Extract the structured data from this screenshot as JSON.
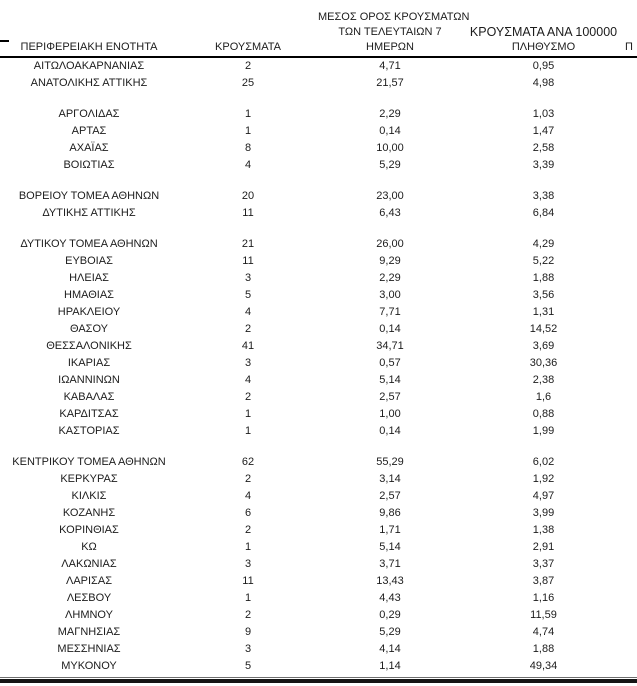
{
  "page": {
    "background": "#ffffff",
    "text_color": "#1c1c1c",
    "rule_color": "#000000"
  },
  "table": {
    "header": {
      "col1": "ΠΕΡΙΦΕΡΕΙΑΚΗ ΕΝΟΤΗΤΑ",
      "col2": "ΚΡΟΥΣΜΑΤΑ",
      "col3_line1": "ΜΕΣΟΣ ΟΡΟΣ ΚΡΟΥΣΜΑΤΩΝ",
      "col3_line2": "ΤΩΝ ΤΕΛΕΥΤΑΙΩΝ 7",
      "col3_line3": "ΗΜΕΡΩΝ",
      "col4_line1": "ΚΡΟΥΣΜΑΤΑ ΑΝΑ 100000",
      "col4_line2": "ΠΛΗΘΥΣΜΟ",
      "next_column_clipped": "Π"
    },
    "column_fields": [
      "region",
      "cases",
      "avg_last_7_days",
      "cases_per_100000"
    ],
    "groups": [
      [
        [
          "ΑΙΤΩΛΟΑΚΑΡΝΑΝΙΑΣ",
          "2",
          "4,71",
          "0,95"
        ],
        [
          "ΑΝΑΤΟΛΙΚΗΣ ΑΤΤΙΚΗΣ",
          "25",
          "21,57",
          "4,98"
        ]
      ],
      [
        [
          "ΑΡΓΟΛΙΔΑΣ",
          "1",
          "2,29",
          "1,03"
        ],
        [
          "ΑΡΤΑΣ",
          "1",
          "0,14",
          "1,47"
        ],
        [
          "ΑΧΑΪΑΣ",
          "8",
          "10,00",
          "2,58"
        ],
        [
          "ΒΟΙΩΤΙΑΣ",
          "4",
          "5,29",
          "3,39"
        ]
      ],
      [
        [
          "ΒΟΡΕΙΟΥ ΤΟΜΕΑ ΑΘΗΝΩΝ",
          "20",
          "23,00",
          "3,38"
        ],
        [
          "ΔΥΤΙΚΗΣ ΑΤΤΙΚΗΣ",
          "11",
          "6,43",
          "6,84"
        ]
      ],
      [
        [
          "ΔΥΤΙΚΟΥ ΤΟΜΕΑ ΑΘΗΝΩΝ",
          "21",
          "26,00",
          "4,29"
        ],
        [
          "ΕΥΒΟΙΑΣ",
          "11",
          "9,29",
          "5,22"
        ],
        [
          "ΗΛΕΙΑΣ",
          "3",
          "2,29",
          "1,88"
        ],
        [
          "ΗΜΑΘΙΑΣ",
          "5",
          "3,00",
          "3,56"
        ],
        [
          "ΗΡΑΚΛΕΙΟΥ",
          "4",
          "7,71",
          "1,31"
        ],
        [
          "ΘΑΣΟΥ",
          "2",
          "0,14",
          "14,52"
        ],
        [
          "ΘΕΣΣΑΛΟΝΙΚΗΣ",
          "41",
          "34,71",
          "3,69"
        ],
        [
          "ΙΚΑΡΙΑΣ",
          "3",
          "0,57",
          "30,36"
        ],
        [
          "ΙΩΑΝΝΙΝΩΝ",
          "4",
          "5,14",
          "2,38"
        ],
        [
          "ΚΑΒΑΛΑΣ",
          "2",
          "2,57",
          "1,6"
        ],
        [
          "ΚΑΡΔΙΤΣΑΣ",
          "1",
          "1,00",
          "0,88"
        ],
        [
          "ΚΑΣΤΟΡΙΑΣ",
          "1",
          "0,14",
          "1,99"
        ]
      ],
      [
        [
          "ΚΕΝΤΡΙΚΟΥ ΤΟΜΕΑ ΑΘΗΝΩΝ",
          "62",
          "55,29",
          "6,02"
        ],
        [
          "ΚΕΡΚΥΡΑΣ",
          "2",
          "3,14",
          "1,92"
        ],
        [
          "ΚΙΛΚΙΣ",
          "4",
          "2,57",
          "4,97"
        ],
        [
          "ΚΟΖΑΝΗΣ",
          "6",
          "9,86",
          "3,99"
        ],
        [
          "ΚΟΡΙΝΘΙΑΣ",
          "2",
          "1,71",
          "1,38"
        ],
        [
          "ΚΩ",
          "1",
          "5,14",
          "2,91"
        ],
        [
          "ΛΑΚΩΝΙΑΣ",
          "3",
          "3,71",
          "3,37"
        ],
        [
          "ΛΑΡΙΣΑΣ",
          "11",
          "13,43",
          "3,87"
        ],
        [
          "ΛΕΣΒΟΥ",
          "1",
          "4,43",
          "1,16"
        ],
        [
          "ΛΗΜΝΟΥ",
          "2",
          "0,29",
          "11,59"
        ],
        [
          "ΜΑΓΝΗΣΙΑΣ",
          "9",
          "5,29",
          "4,74"
        ],
        [
          "ΜΕΣΣΗΝΙΑΣ",
          "3",
          "4,14",
          "1,88"
        ],
        [
          "ΜΥΚΟΝΟΥ",
          "5",
          "1,14",
          "49,34"
        ]
      ]
    ]
  }
}
